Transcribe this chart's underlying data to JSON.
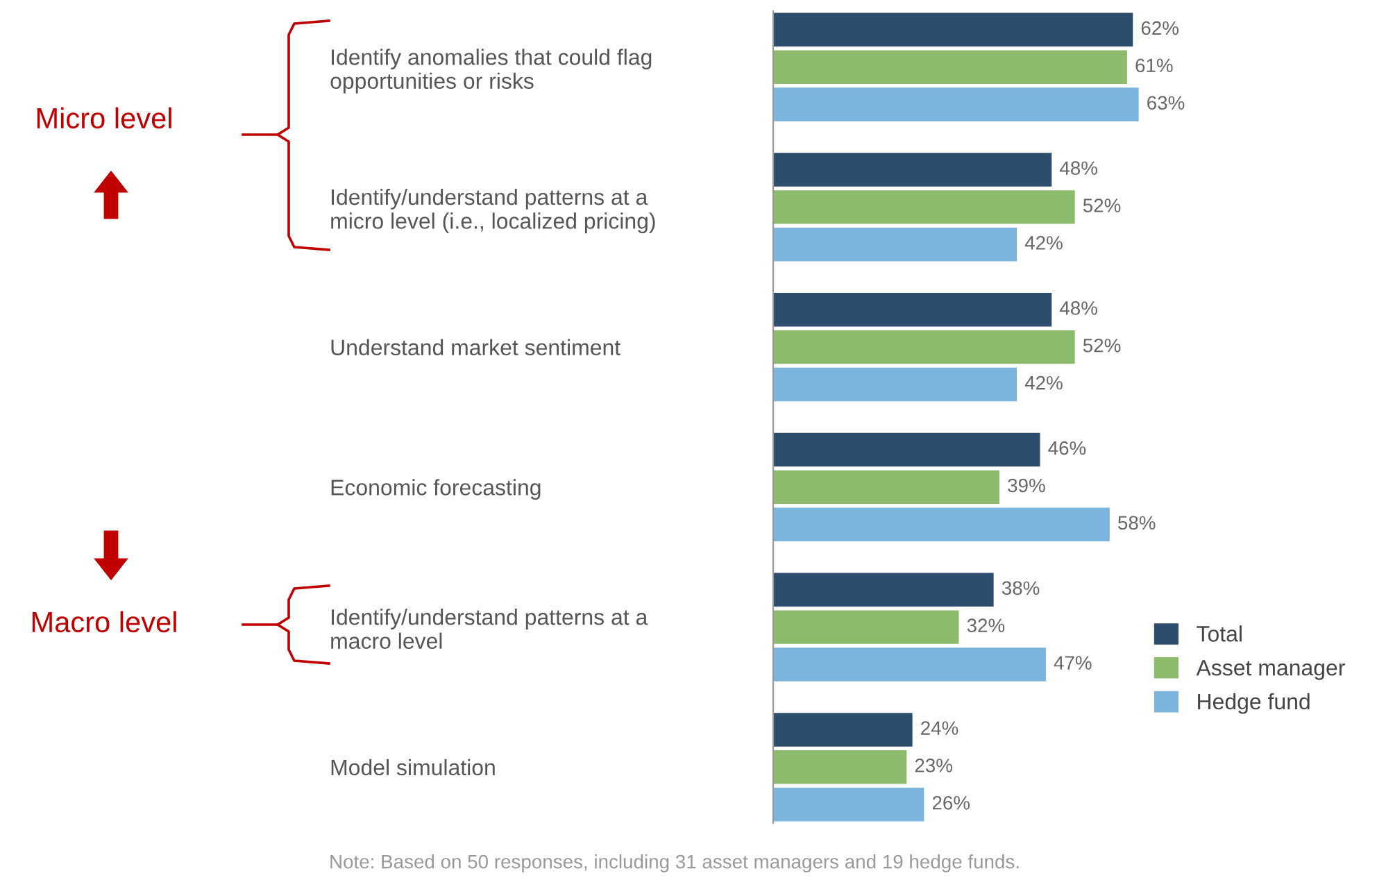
{
  "chart_data": {
    "type": "bar",
    "orientation": "horizontal",
    "legend": "bottom right",
    "grid": false,
    "categories": [
      "Identify anomalies that could flag\nopportunities or risks",
      "Identify/understand patterns at a\nmicro level (i.e., localized pricing)",
      "Understand market sentiment",
      "Economic forecasting",
      "Identify/understand patterns at a\nmacro level",
      "Model simulation"
    ],
    "series": [
      {
        "name": "Total",
        "color": "#2c4d6d",
        "values": [
          62,
          48,
          48,
          46,
          38,
          24
        ],
        "value_labels": [
          "62%",
          "48%",
          "48%",
          "46%",
          "38%",
          "24%"
        ]
      },
      {
        "name": "Asset manager",
        "color": "#8dbb6c",
        "values": [
          61,
          52,
          52,
          39,
          32,
          23
        ],
        "value_labels": [
          "61%",
          "52%",
          "52%",
          "39%",
          "32%",
          "23%"
        ]
      },
      {
        "name": "Hedge fund",
        "color": "#7bb5dd",
        "values": [
          63,
          42,
          42,
          58,
          47,
          26
        ],
        "value_labels": [
          "63%",
          "42%",
          "42%",
          "58%",
          "47%",
          "26%"
        ]
      }
    ],
    "annotations": [
      "Micro level",
      "Macro level",
      "Note: Based on 50 responses, including 31 asset managers and 19 hedge funds."
    ]
  }
}
